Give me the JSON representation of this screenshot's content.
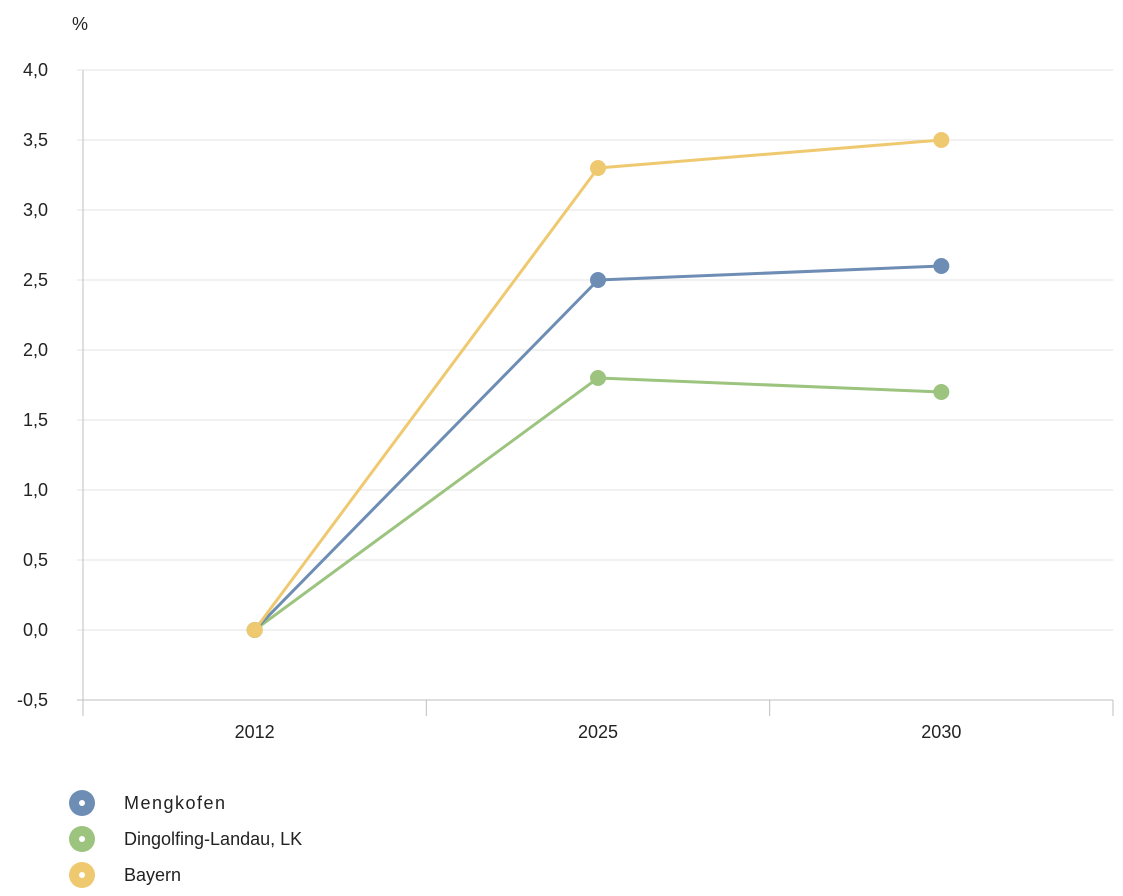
{
  "chart_data": {
    "type": "line",
    "unit_label": "%",
    "x": [
      "2012",
      "2025",
      "2030"
    ],
    "ylim": [
      -0.5,
      4.0
    ],
    "y_ticks": [
      "4,0",
      "3,5",
      "3,0",
      "2,5",
      "2,0",
      "1,5",
      "1,0",
      "0,5",
      "0,0",
      "-0,5"
    ],
    "y_tick_values": [
      4.0,
      3.5,
      3.0,
      2.5,
      2.0,
      1.5,
      1.0,
      0.5,
      0.0,
      -0.5
    ],
    "grid": "horizontal",
    "legend_position": "bottom-left",
    "series": [
      {
        "name": "Mengkofen",
        "color": "#6e8db5",
        "values": [
          0.0,
          2.5,
          2.6
        ]
      },
      {
        "name": "Dingolfing-Landau, LK",
        "color": "#9cc47e",
        "values": [
          0.0,
          1.8,
          1.7
        ]
      },
      {
        "name": "Bayern",
        "color": "#efc970",
        "values": [
          0.0,
          3.3,
          3.5
        ]
      }
    ]
  }
}
